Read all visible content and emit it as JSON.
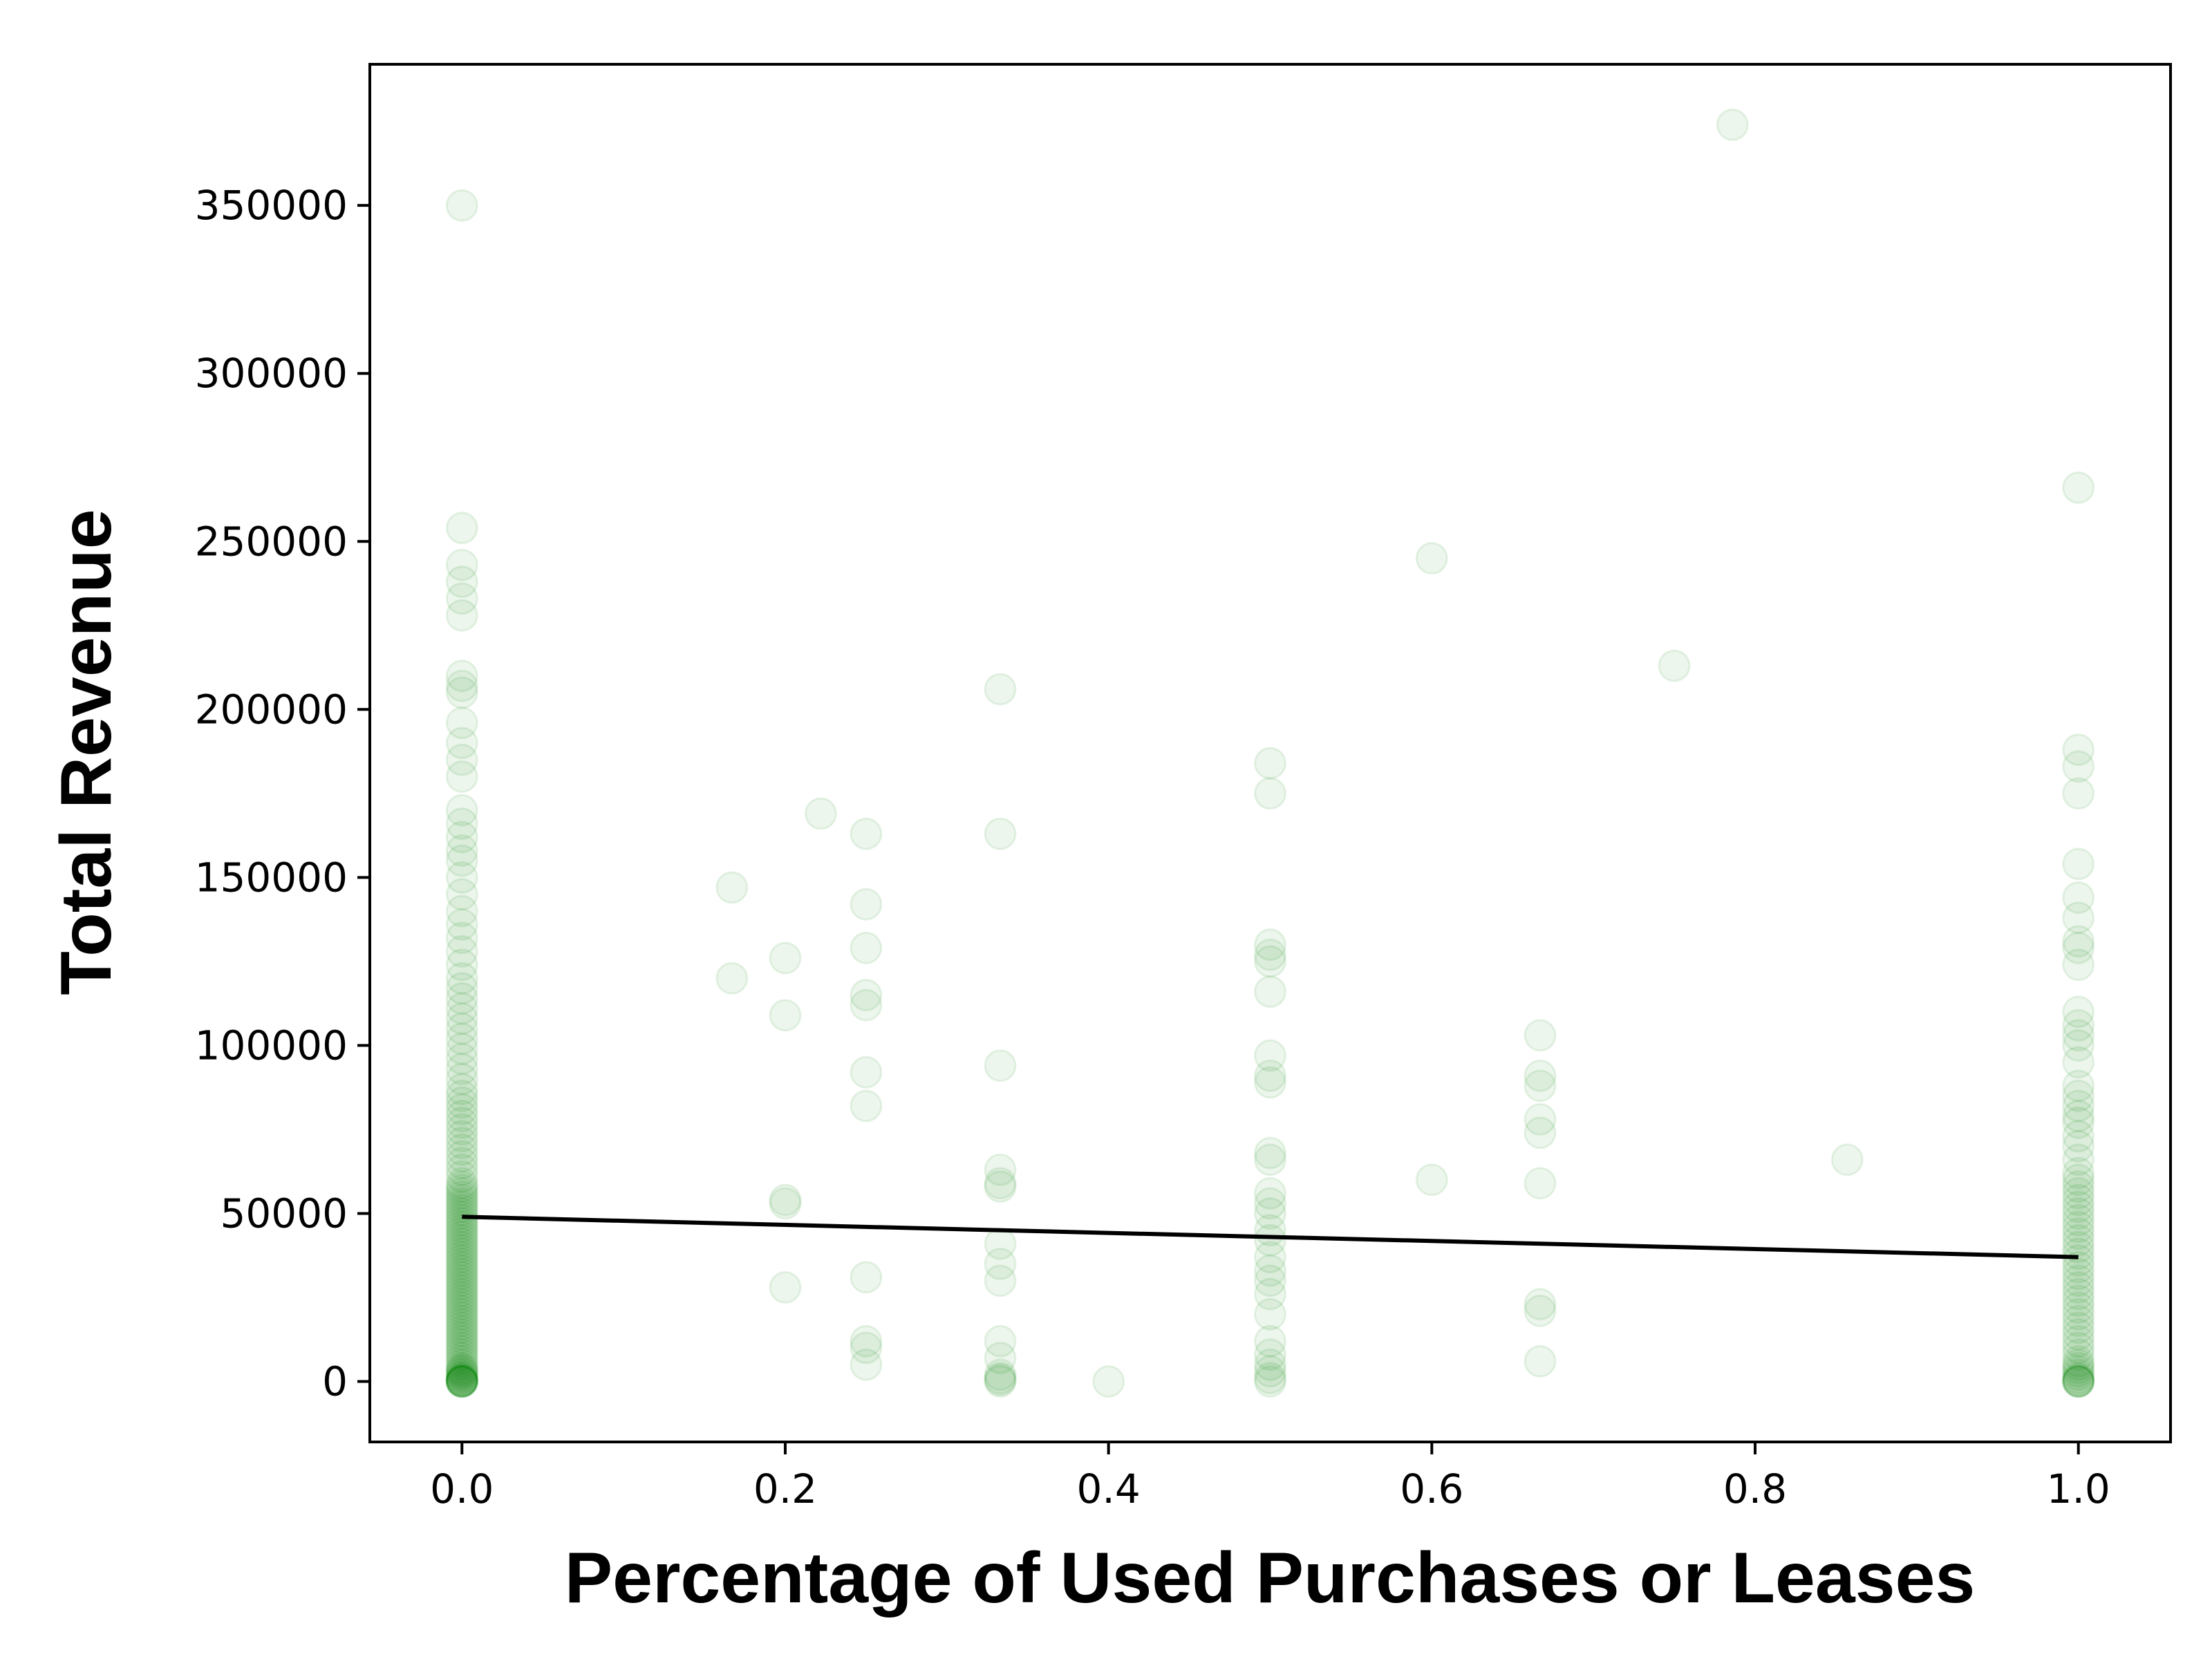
{
  "chart_data": {
    "type": "scatter",
    "title": "",
    "xlabel": "Percentage of Used Purchases or Leases",
    "ylabel": "Total Revenue",
    "xlim": [
      -0.057,
      1.057
    ],
    "ylim": [
      -18000,
      392000
    ],
    "x_ticks": [
      0.0,
      0.2,
      0.4,
      0.6,
      0.8,
      1.0
    ],
    "x_tick_labels": [
      "0.0",
      "0.2",
      "0.4",
      "0.6",
      "0.8",
      "1.0"
    ],
    "y_ticks": [
      0,
      50000,
      100000,
      150000,
      200000,
      250000,
      300000,
      350000
    ],
    "y_tick_labels": [
      "0",
      "50000",
      "100000",
      "150000",
      "200000",
      "250000",
      "300000",
      "350000"
    ],
    "grid": false,
    "colors": {
      "points": "#008000",
      "trend_line": "#000000",
      "axes": "#000000"
    },
    "point_opacity": 0.07,
    "series": [
      {
        "type": "scatter",
        "points": [
          [
            0,
            350000
          ],
          [
            0,
            254000
          ],
          [
            0,
            243000
          ],
          [
            0,
            238000
          ],
          [
            0,
            233000
          ],
          [
            0,
            228000
          ],
          [
            0,
            210000
          ],
          [
            0,
            207000
          ],
          [
            0,
            205000
          ],
          [
            0,
            196000
          ],
          [
            0,
            190000
          ],
          [
            0,
            185000
          ],
          [
            0,
            180000
          ],
          [
            0,
            170000
          ],
          [
            0,
            166000
          ],
          [
            0,
            162000
          ],
          [
            0,
            158000
          ],
          [
            0,
            155000
          ],
          [
            0,
            150000
          ],
          [
            0,
            145000
          ],
          [
            0,
            140000
          ],
          [
            0,
            136000
          ],
          [
            0,
            132000
          ],
          [
            0,
            128000
          ],
          [
            0,
            124000
          ],
          [
            0,
            120000
          ],
          [
            0,
            117000
          ],
          [
            0,
            114000
          ],
          [
            0,
            111000
          ],
          [
            0,
            108000
          ],
          [
            0,
            105000
          ],
          [
            0,
            102000
          ],
          [
            0,
            99000
          ],
          [
            0,
            96000
          ],
          [
            0,
            93000
          ],
          [
            0,
            90000
          ],
          [
            0,
            87000
          ],
          [
            0,
            85000
          ],
          [
            0,
            83000
          ],
          [
            0,
            81000
          ],
          [
            0,
            79000
          ],
          [
            0,
            77000
          ],
          [
            0,
            75000
          ],
          [
            0,
            73000
          ],
          [
            0,
            71000
          ],
          [
            0,
            69000
          ],
          [
            0,
            67000
          ],
          [
            0,
            65000
          ],
          [
            0,
            63000
          ],
          [
            0,
            61000
          ],
          [
            0,
            59000
          ],
          [
            0,
            58000
          ],
          [
            0,
            57000
          ],
          [
            0,
            56000
          ],
          [
            0,
            55000
          ],
          [
            0,
            54000
          ],
          [
            0,
            53000
          ],
          [
            0,
            52000
          ],
          [
            0,
            51000
          ],
          [
            0,
            50000
          ],
          [
            0,
            49000
          ],
          [
            0,
            48000
          ],
          [
            0,
            47000
          ],
          [
            0,
            46000
          ],
          [
            0,
            45000
          ],
          [
            0,
            44000
          ],
          [
            0,
            43000
          ],
          [
            0,
            42000
          ],
          [
            0,
            41000
          ],
          [
            0,
            40000
          ],
          [
            0,
            39000
          ],
          [
            0,
            38000
          ],
          [
            0,
            37000
          ],
          [
            0,
            36000
          ],
          [
            0,
            35000
          ],
          [
            0,
            34000
          ],
          [
            0,
            33000
          ],
          [
            0,
            32000
          ],
          [
            0,
            31000
          ],
          [
            0,
            30000
          ],
          [
            0,
            29000
          ],
          [
            0,
            28000
          ],
          [
            0,
            27000
          ],
          [
            0,
            26000
          ],
          [
            0,
            25000
          ],
          [
            0,
            24000
          ],
          [
            0,
            23000
          ],
          [
            0,
            22000
          ],
          [
            0,
            21000
          ],
          [
            0,
            20000
          ],
          [
            0,
            19000
          ],
          [
            0,
            18000
          ],
          [
            0,
            17000
          ],
          [
            0,
            16000
          ],
          [
            0,
            15000
          ],
          [
            0,
            14000
          ],
          [
            0,
            13000
          ],
          [
            0,
            12000
          ],
          [
            0,
            11000
          ],
          [
            0,
            10000
          ],
          [
            0,
            9000
          ],
          [
            0,
            8000
          ],
          [
            0,
            7000
          ],
          [
            0,
            6000
          ],
          [
            0,
            5000
          ],
          [
            0,
            4000
          ],
          [
            0,
            3500
          ],
          [
            0,
            3000
          ],
          [
            0,
            2500
          ],
          [
            0,
            2000
          ],
          [
            0,
            1500
          ],
          [
            0,
            1000
          ],
          [
            0,
            700
          ],
          [
            0,
            400
          ],
          [
            0,
            200
          ],
          [
            0,
            0
          ],
          [
            0,
            0
          ],
          [
            0,
            0
          ],
          [
            0,
            0
          ],
          [
            0,
            0
          ],
          [
            0,
            0
          ],
          [
            0.167,
            147000
          ],
          [
            0.167,
            120000
          ],
          [
            0.2,
            126000
          ],
          [
            0.2,
            109000
          ],
          [
            0.2,
            54000
          ],
          [
            0.2,
            53000
          ],
          [
            0.2,
            28000
          ],
          [
            0.222,
            169000
          ],
          [
            0.25,
            163000
          ],
          [
            0.25,
            142000
          ],
          [
            0.25,
            129000
          ],
          [
            0.25,
            115000
          ],
          [
            0.25,
            112000
          ],
          [
            0.25,
            92000
          ],
          [
            0.25,
            82000
          ],
          [
            0.25,
            31000
          ],
          [
            0.25,
            12000
          ],
          [
            0.25,
            10000
          ],
          [
            0.25,
            5000
          ],
          [
            0.333,
            206000
          ],
          [
            0.333,
            163000
          ],
          [
            0.333,
            94000
          ],
          [
            0.333,
            63000
          ],
          [
            0.333,
            59000
          ],
          [
            0.333,
            58000
          ],
          [
            0.333,
            41000
          ],
          [
            0.333,
            35000
          ],
          [
            0.333,
            30000
          ],
          [
            0.333,
            12000
          ],
          [
            0.333,
            7000
          ],
          [
            0.333,
            2000
          ],
          [
            0.333,
            1000
          ],
          [
            0.333,
            500
          ],
          [
            0.333,
            0
          ],
          [
            0.4,
            0
          ],
          [
            0.5,
            184000
          ],
          [
            0.5,
            175000
          ],
          [
            0.5,
            130000
          ],
          [
            0.5,
            127000
          ],
          [
            0.5,
            125000
          ],
          [
            0.5,
            116000
          ],
          [
            0.5,
            97000
          ],
          [
            0.5,
            91000
          ],
          [
            0.5,
            89000
          ],
          [
            0.5,
            68000
          ],
          [
            0.5,
            66000
          ],
          [
            0.5,
            56000
          ],
          [
            0.5,
            53000
          ],
          [
            0.5,
            50000
          ],
          [
            0.5,
            45000
          ],
          [
            0.5,
            42000
          ],
          [
            0.5,
            37000
          ],
          [
            0.5,
            33000
          ],
          [
            0.5,
            30000
          ],
          [
            0.5,
            26000
          ],
          [
            0.5,
            20000
          ],
          [
            0.5,
            12000
          ],
          [
            0.5,
            8000
          ],
          [
            0.5,
            5000
          ],
          [
            0.5,
            3000
          ],
          [
            0.5,
            1000
          ],
          [
            0.5,
            0
          ],
          [
            0.6,
            245000
          ],
          [
            0.6,
            60000
          ],
          [
            0.667,
            103000
          ],
          [
            0.667,
            91000
          ],
          [
            0.667,
            88000
          ],
          [
            0.667,
            78000
          ],
          [
            0.667,
            74000
          ],
          [
            0.667,
            59000
          ],
          [
            0.667,
            23000
          ],
          [
            0.667,
            21000
          ],
          [
            0.667,
            6000
          ],
          [
            0.75,
            213000
          ],
          [
            0.786,
            374000
          ],
          [
            0.857,
            66000
          ],
          [
            1,
            266000
          ],
          [
            1,
            188000
          ],
          [
            1,
            183000
          ],
          [
            1,
            175000
          ],
          [
            1,
            154000
          ],
          [
            1,
            144000
          ],
          [
            1,
            138000
          ],
          [
            1,
            131000
          ],
          [
            1,
            129000
          ],
          [
            1,
            124000
          ],
          [
            1,
            110000
          ],
          [
            1,
            106000
          ],
          [
            1,
            103000
          ],
          [
            1,
            100000
          ],
          [
            1,
            95000
          ],
          [
            1,
            88000
          ],
          [
            1,
            85000
          ],
          [
            1,
            82000
          ],
          [
            1,
            79000
          ],
          [
            1,
            77000
          ],
          [
            1,
            73000
          ],
          [
            1,
            70000
          ],
          [
            1,
            66000
          ],
          [
            1,
            62000
          ],
          [
            1,
            60000
          ],
          [
            1,
            58000
          ],
          [
            1,
            56000
          ],
          [
            1,
            54000
          ],
          [
            1,
            52000
          ],
          [
            1,
            50000
          ],
          [
            1,
            48000
          ],
          [
            1,
            46000
          ],
          [
            1,
            44000
          ],
          [
            1,
            42000
          ],
          [
            1,
            40000
          ],
          [
            1,
            38000
          ],
          [
            1,
            36000
          ],
          [
            1,
            34000
          ],
          [
            1,
            32000
          ],
          [
            1,
            30000
          ],
          [
            1,
            28000
          ],
          [
            1,
            26000
          ],
          [
            1,
            24000
          ],
          [
            1,
            22000
          ],
          [
            1,
            20000
          ],
          [
            1,
            18000
          ],
          [
            1,
            16000
          ],
          [
            1,
            14000
          ],
          [
            1,
            12000
          ],
          [
            1,
            10000
          ],
          [
            1,
            8000
          ],
          [
            1,
            6000
          ],
          [
            1,
            5000
          ],
          [
            1,
            4000
          ],
          [
            1,
            3000
          ],
          [
            1,
            2000
          ],
          [
            1,
            1000
          ],
          [
            1,
            500
          ],
          [
            1,
            0
          ],
          [
            1,
            0
          ],
          [
            1,
            0
          ],
          [
            1,
            0
          ]
        ]
      },
      {
        "type": "line",
        "points": [
          [
            0,
            49000
          ],
          [
            1,
            37000
          ]
        ]
      }
    ]
  }
}
